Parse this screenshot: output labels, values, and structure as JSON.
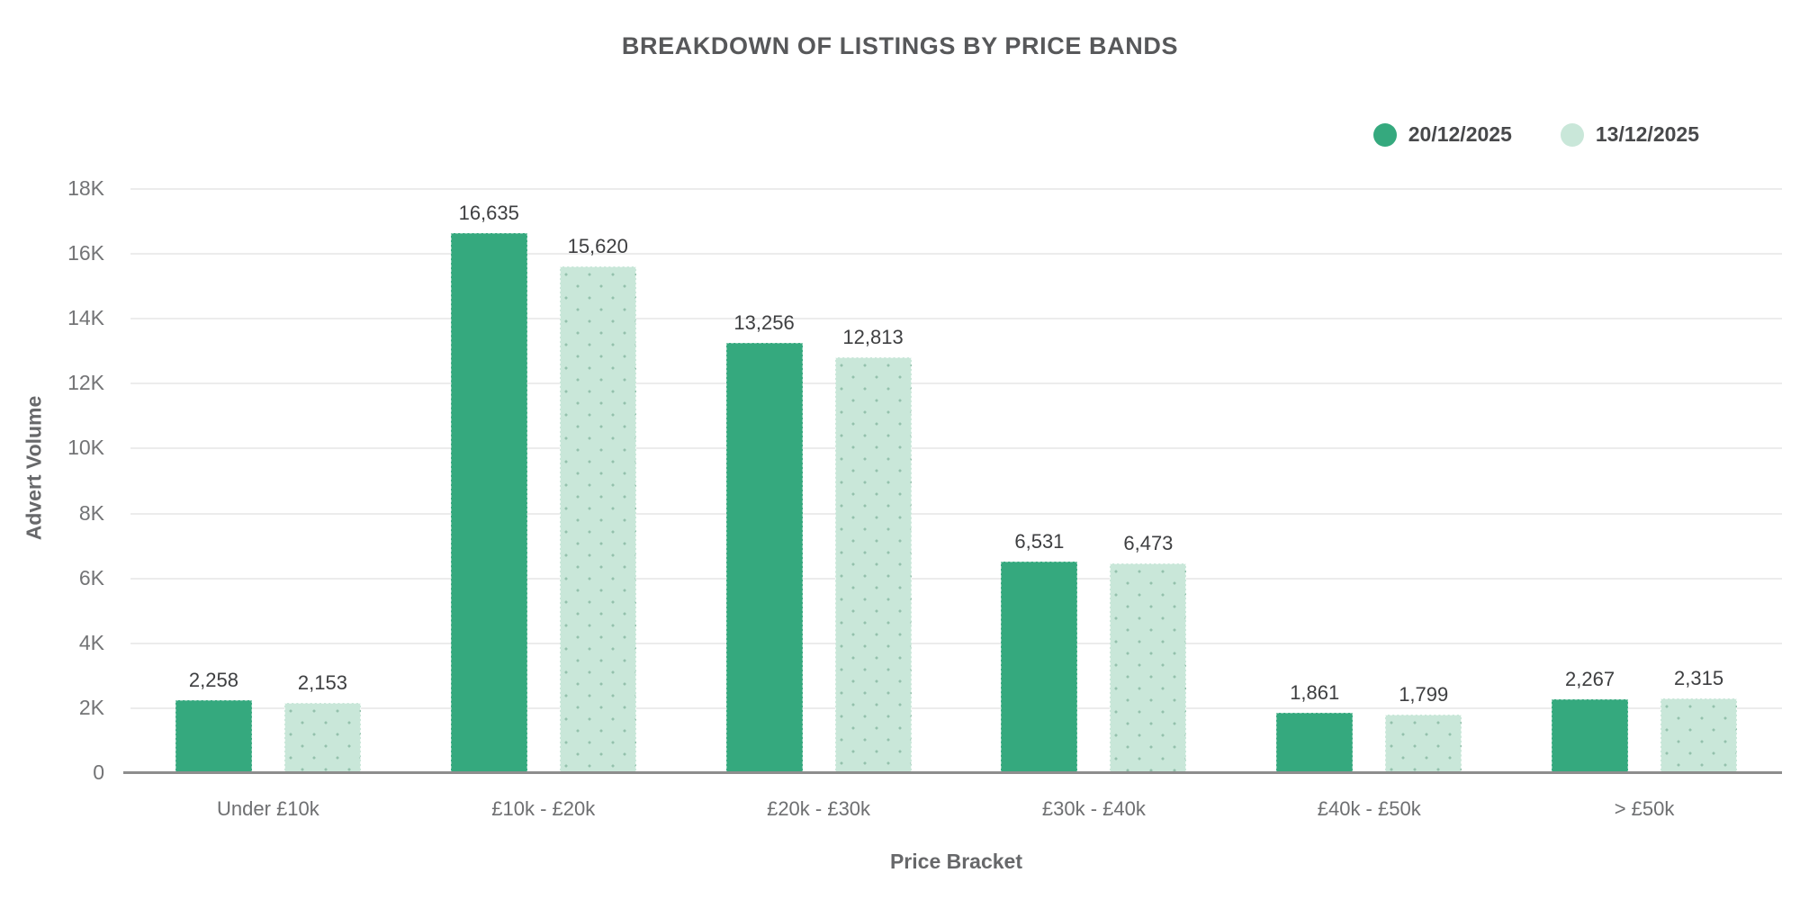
{
  "title": "BREAKDOWN OF LISTINGS BY PRICE BANDS",
  "legend": [
    {
      "label": "20/12/2025",
      "color": "#35a97e"
    },
    {
      "label": "13/12/2025",
      "color": "#c9e7d9"
    }
  ],
  "colors": {
    "series_current": "#35a97e",
    "series_previous": "#c9e7d9",
    "gridline": "#ececec",
    "axis_line": "#8d8d8d",
    "text_dark": "#3e3f41",
    "text_gray": "#6e6f71"
  },
  "chart_data": {
    "type": "bar",
    "title": "BREAKDOWN OF LISTINGS BY PRICE BANDS",
    "xlabel": "Price Bracket",
    "ylabel": "Advert Volume",
    "categories": [
      "Under £10k",
      "£10k - £20k",
      "£20k - £30k",
      "£30k - £40k",
      "£40k - £50k",
      "> £50k"
    ],
    "series": [
      {
        "name": "20/12/2025",
        "color": "#35a97e",
        "values": [
          2258,
          16635,
          13256,
          6531,
          1861,
          2267
        ],
        "value_labels": [
          "2,258",
          "16,635",
          "13,256",
          "6,531",
          "1,861",
          "2,267"
        ]
      },
      {
        "name": "13/12/2025",
        "color": "#c9e7d9",
        "values": [
          2153,
          15620,
          12813,
          6473,
          1799,
          2315
        ],
        "value_labels": [
          "2,153",
          "15,620",
          "12,813",
          "6,473",
          "1,799",
          "2,315"
        ]
      }
    ],
    "ylim": [
      0,
      18000
    ],
    "yticks": [
      {
        "value": 0,
        "label": "0"
      },
      {
        "value": 2000,
        "label": "2K"
      },
      {
        "value": 4000,
        "label": "4K"
      },
      {
        "value": 6000,
        "label": "6K"
      },
      {
        "value": 8000,
        "label": "8K"
      },
      {
        "value": 10000,
        "label": "10K"
      },
      {
        "value": 12000,
        "label": "12K"
      },
      {
        "value": 14000,
        "label": "14K"
      },
      {
        "value": 16000,
        "label": "16K"
      },
      {
        "value": 18000,
        "label": "18K"
      }
    ],
    "grid": true,
    "legend_position": "top-right"
  }
}
